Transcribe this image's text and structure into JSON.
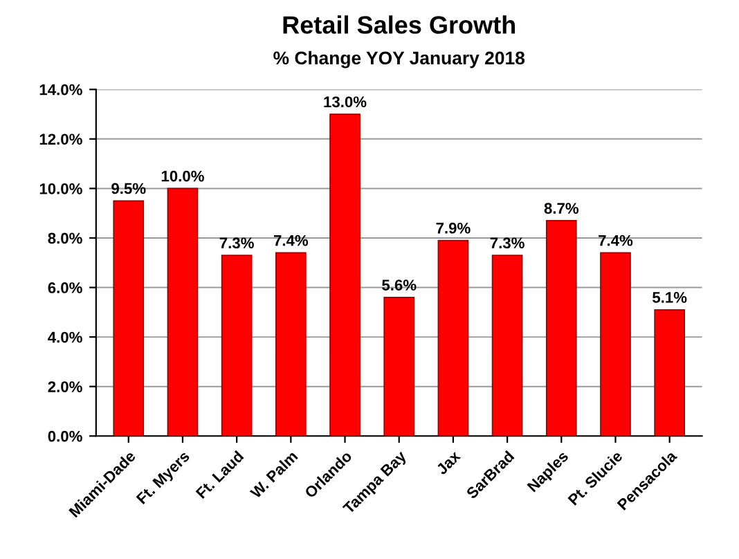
{
  "chart_data": {
    "type": "bar",
    "title": "Retail Sales Growth",
    "subtitle": "% Change YOY January 2018",
    "categories": [
      "Miami-Dade",
      "Ft. Myers",
      "Ft. Laud",
      "W. Palm",
      "Orlando",
      "Tampa Bay",
      "Jax",
      "SarBrad",
      "Naples",
      "Pt. Slucie",
      "Pensacola"
    ],
    "values": [
      9.5,
      10.0,
      7.3,
      7.4,
      13.0,
      5.6,
      7.9,
      7.3,
      8.7,
      7.4,
      5.1
    ],
    "value_labels": [
      "9.5%",
      "10.0%",
      "7.3%",
      "7.4%",
      "13.0%",
      "5.6%",
      "7.9%",
      "7.3%",
      "8.7%",
      "7.4%",
      "5.1%"
    ],
    "color": "#ff0000",
    "ylim": [
      0,
      14
    ],
    "yticks": [
      {
        "value": 0,
        "label": "0.0%"
      },
      {
        "value": 2,
        "label": "2.0%"
      },
      {
        "value": 4,
        "label": "4.0%"
      },
      {
        "value": 6,
        "label": "6.0%"
      },
      {
        "value": 8,
        "label": "8.0%"
      },
      {
        "value": 10,
        "label": "10.0%"
      },
      {
        "value": 12,
        "label": "12.0%"
      },
      {
        "value": 14,
        "label": "14.0%"
      }
    ],
    "grid": "y"
  }
}
